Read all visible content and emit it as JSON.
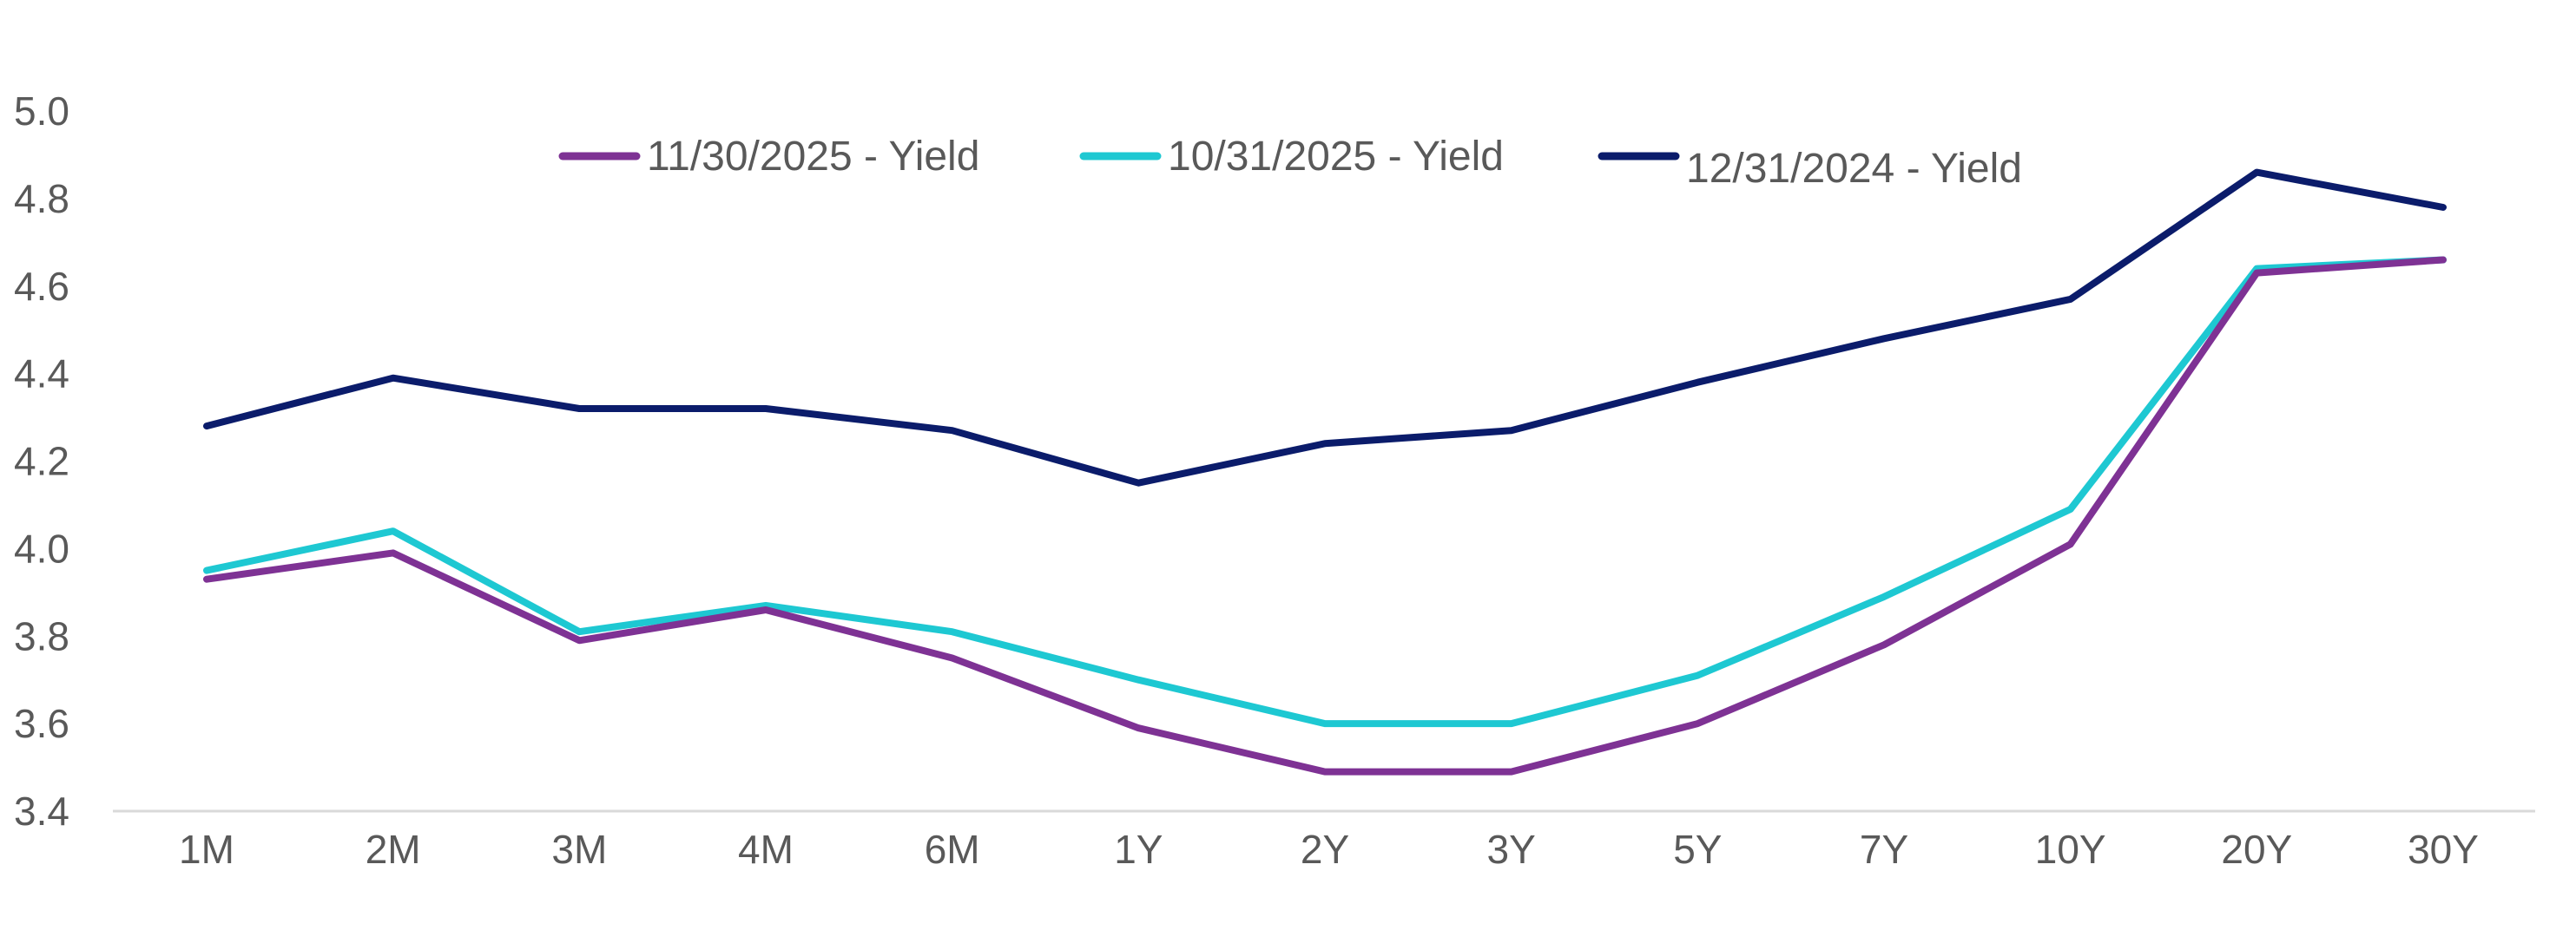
{
  "chart_data": {
    "type": "line",
    "title": "",
    "xlabel": "",
    "ylabel": "",
    "categories": [
      "1M",
      "2M",
      "3M",
      "4M",
      "6M",
      "1Y",
      "2Y",
      "3Y",
      "5Y",
      "7Y",
      "10Y",
      "20Y",
      "30Y"
    ],
    "ylim": [
      3.4,
      5.0
    ],
    "yticks": [
      "3.4",
      "3.6",
      "3.8",
      "4.0",
      "4.2",
      "4.4",
      "4.6",
      "4.8",
      "5.0"
    ],
    "grid": false,
    "legend_position": "top",
    "series": [
      {
        "name": "11/30/2025 - Yield",
        "color": "#7E3294",
        "values": [
          3.93,
          3.99,
          3.79,
          3.86,
          3.75,
          3.59,
          3.49,
          3.49,
          3.6,
          3.78,
          4.01,
          4.63,
          4.66
        ]
      },
      {
        "name": "10/31/2025 - Yield",
        "color": "#1EC8D2",
        "values": [
          3.95,
          4.04,
          3.81,
          3.87,
          3.81,
          3.7,
          3.6,
          3.6,
          3.71,
          3.89,
          4.09,
          4.64,
          4.66
        ]
      },
      {
        "name": "12/31/2024 - Yield",
        "color": "#0B1C6B",
        "values": [
          4.28,
          4.39,
          4.32,
          4.32,
          4.27,
          4.15,
          4.24,
          4.27,
          4.38,
          4.48,
          4.57,
          4.86,
          4.78
        ]
      }
    ]
  }
}
